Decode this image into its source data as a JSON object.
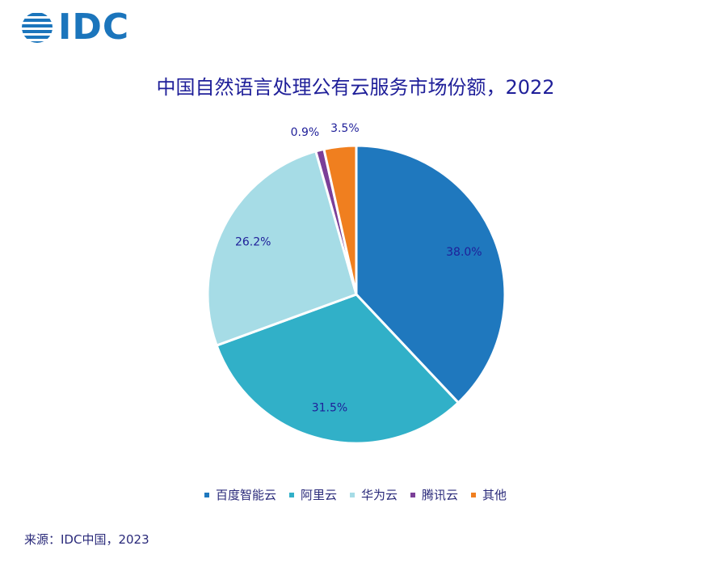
{
  "header": {
    "logo_text": "IDC",
    "logo_icon": "globe-icon",
    "brand_color": "#1b75bc"
  },
  "chart_data": {
    "type": "pie",
    "title": "中国自然语言处理公有云服务市场份额，2022",
    "categories": [
      "百度智能云",
      "阿里云",
      "华为云",
      "腾讯云",
      "其他"
    ],
    "values": [
      38.0,
      31.5,
      26.2,
      0.9,
      3.5
    ],
    "value_labels": [
      "38.0%",
      "31.5%",
      "26.2%",
      "0.9%",
      "3.5%"
    ],
    "colors": [
      "#1f78be",
      "#31b0c8",
      "#a6dce6",
      "#7b3f98",
      "#f07f1f"
    ],
    "legend_position": "bottom",
    "start_angle_deg": 0,
    "direction": "clockwise"
  },
  "footer": {
    "source": "来源：IDC中国，2023"
  }
}
